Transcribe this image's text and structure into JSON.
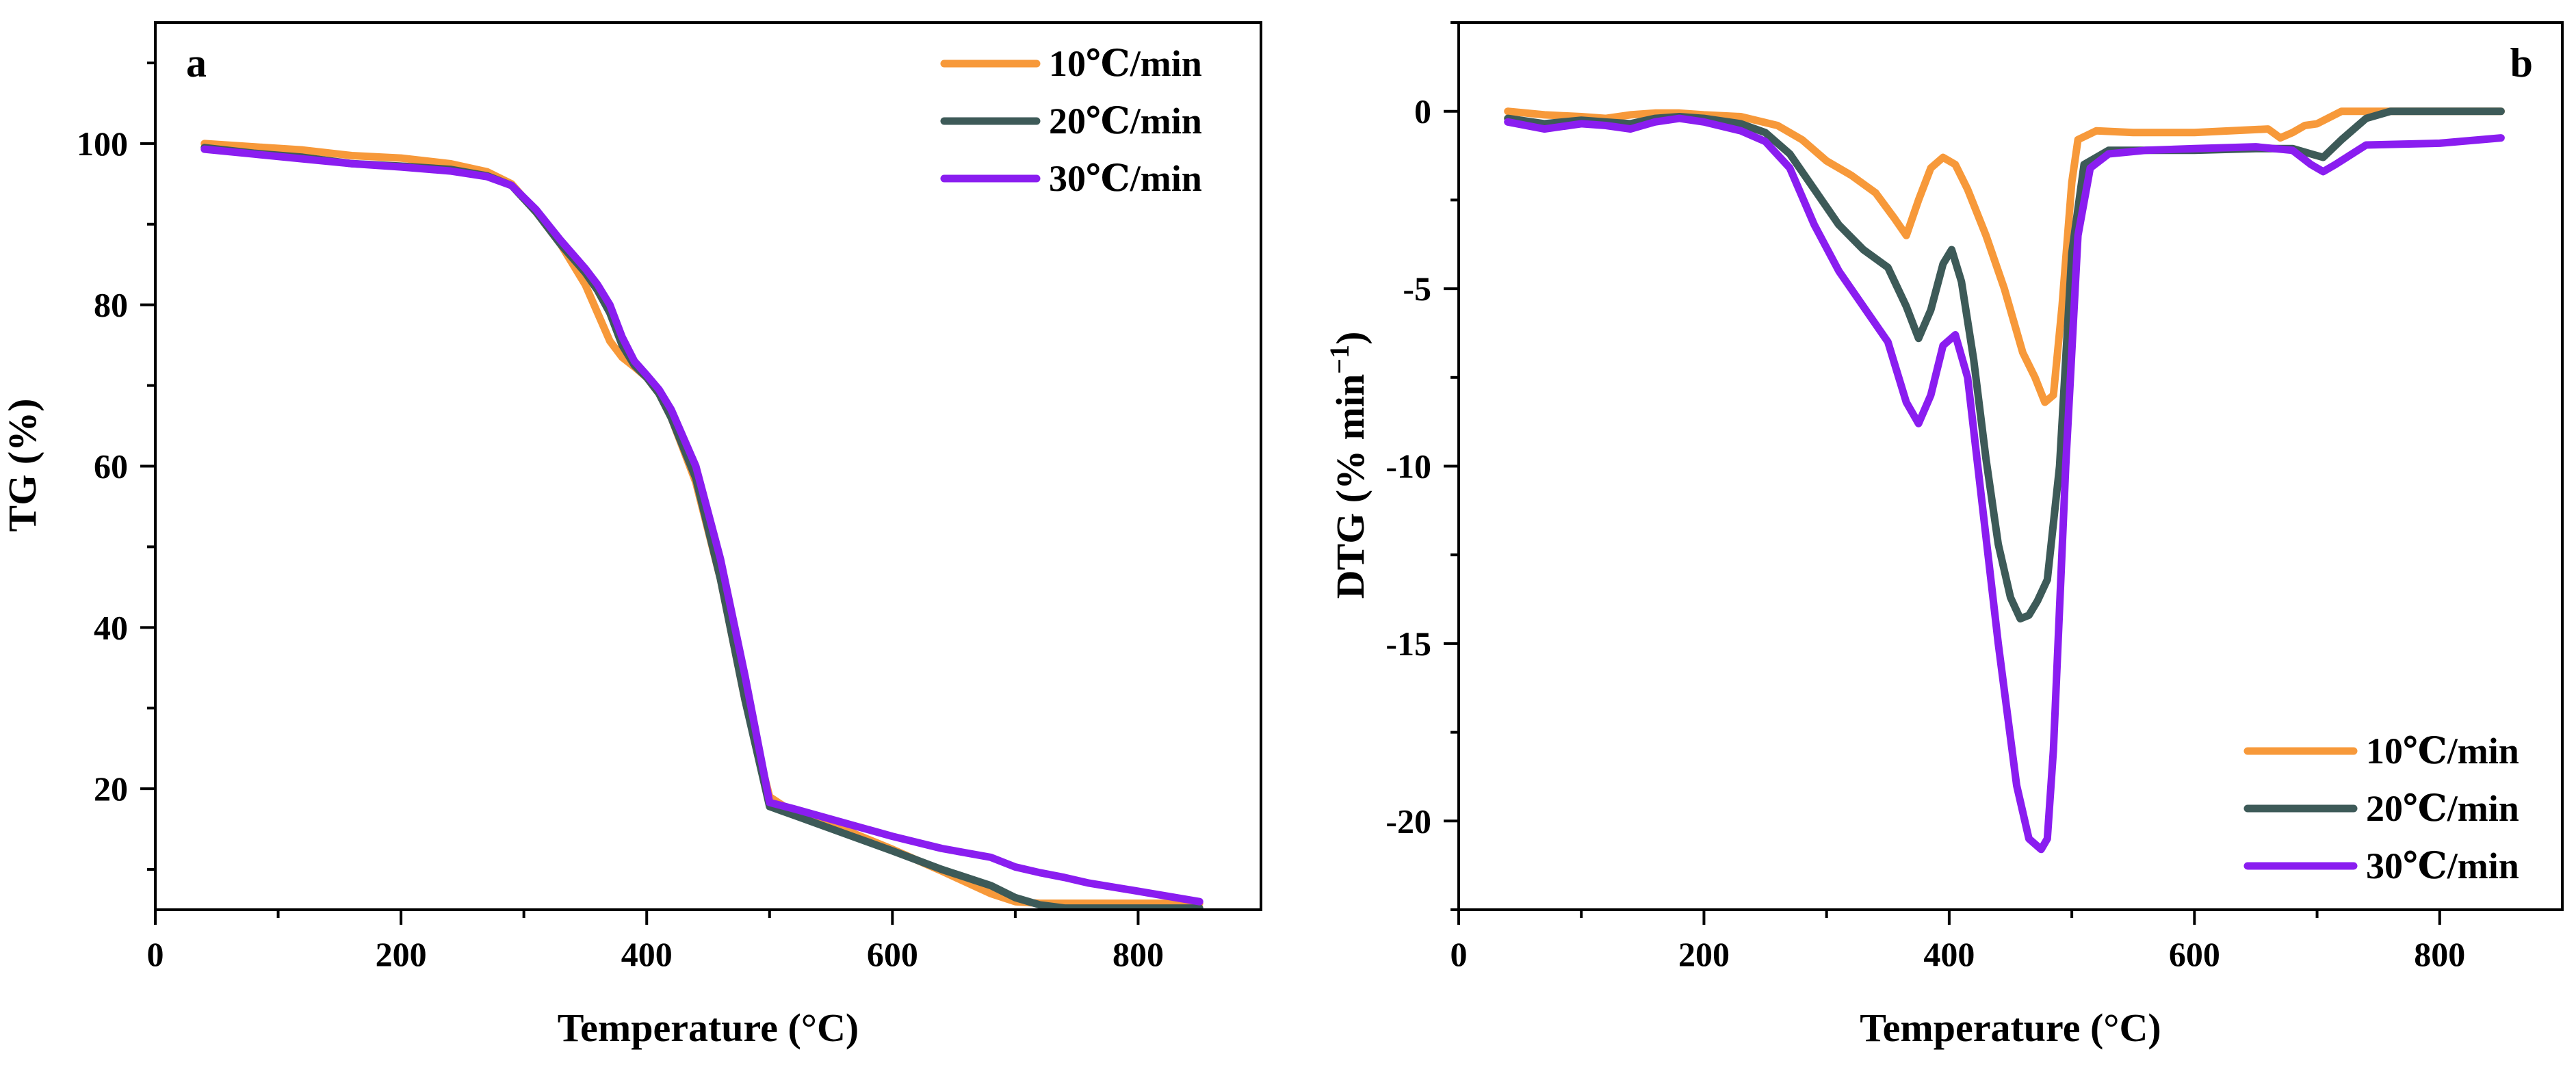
{
  "chart_data": [
    {
      "panel_label": "a",
      "type": "line",
      "xlabel": "Temperature (°C)",
      "ylabel": "TG (%)",
      "xlim": [
        0,
        900
      ],
      "ylim": [
        5,
        115
      ],
      "xticks": [
        0,
        200,
        400,
        600,
        800
      ],
      "xtick_labels": [
        "0",
        "200",
        "400",
        "600",
        "800"
      ],
      "yticks": [
        20,
        40,
        60,
        80,
        100
      ],
      "ytick_labels": [
        "20",
        "40",
        "60",
        "80",
        "100"
      ],
      "legend_position": "top-right",
      "series": [
        {
          "name": "10℃/min",
          "color": "#F7993A",
          "x": [
            40,
            80,
            120,
            160,
            200,
            240,
            270,
            290,
            310,
            330,
            350,
            360,
            370,
            380,
            390,
            400,
            410,
            420,
            440,
            460,
            480,
            500,
            520,
            560,
            600,
            640,
            680,
            700,
            720,
            740,
            760,
            800,
            850
          ],
          "y": [
            100,
            99.6,
            99.2,
            98.5,
            98.2,
            97.5,
            96.5,
            95,
            91.5,
            87.5,
            82.5,
            79,
            75.5,
            73.5,
            72.3,
            71,
            69,
            66,
            58,
            46,
            31,
            19,
            17,
            15,
            12.5,
            9.8,
            7,
            6,
            5.8,
            5.8,
            5.8,
            5.8,
            5.8
          ]
        },
        {
          "name": "20℃/min",
          "color": "#3D5A58",
          "x": [
            40,
            80,
            120,
            160,
            200,
            240,
            270,
            290,
            310,
            330,
            350,
            360,
            370,
            380,
            390,
            400,
            410,
            420,
            440,
            460,
            480,
            500,
            520,
            560,
            600,
            640,
            680,
            700,
            720,
            740,
            760,
            800,
            850
          ],
          "y": [
            99.5,
            98.8,
            98.3,
            97.5,
            97.2,
            96.8,
            96,
            94.8,
            91.5,
            87.5,
            84,
            81.8,
            79,
            75,
            72.5,
            71,
            69,
            66,
            58.5,
            46,
            31,
            17.8,
            16.7,
            14.5,
            12.3,
            10,
            8,
            6.5,
            5.6,
            5.2,
            5.2,
            5.2,
            5.2
          ]
        },
        {
          "name": "30℃/min",
          "color": "#8A1DF0",
          "x": [
            40,
            80,
            120,
            160,
            200,
            240,
            270,
            290,
            310,
            330,
            350,
            360,
            370,
            380,
            390,
            400,
            410,
            420,
            440,
            460,
            480,
            500,
            520,
            560,
            600,
            640,
            680,
            700,
            720,
            740,
            760,
            800,
            850
          ],
          "y": [
            99.3,
            98.7,
            98.1,
            97.5,
            97.1,
            96.6,
            95.9,
            94.8,
            91.8,
            88,
            84.5,
            82.5,
            80,
            76,
            73,
            71.3,
            69.5,
            67,
            60,
            48.5,
            34,
            18.3,
            17.5,
            15.8,
            14.1,
            12.6,
            11.5,
            10.3,
            9.6,
            9,
            8.3,
            7.3,
            6
          ]
        }
      ]
    },
    {
      "panel_label": "b",
      "type": "line",
      "xlabel": "Temperature (°C)",
      "ylabel": "DTG (% min",
      "ylabel_superscript": "−1",
      "ylabel_suffix": ")",
      "xlim": [
        0,
        900
      ],
      "ylim": [
        -22.5,
        2.5
      ],
      "xticks": [
        0,
        200,
        400,
        600,
        800
      ],
      "xtick_labels": [
        "0",
        "200",
        "400",
        "600",
        "800"
      ],
      "yticks": [
        0,
        -5,
        -10,
        -15,
        -20
      ],
      "ytick_labels": [
        "0",
        "-5",
        "-10",
        "-15",
        "-20"
      ],
      "legend_position": "bottom-right",
      "series": [
        {
          "name": "10℃/min",
          "color": "#F7993A",
          "x": [
            40,
            70,
            100,
            120,
            140,
            160,
            180,
            200,
            230,
            260,
            280,
            300,
            320,
            340,
            355,
            365,
            375,
            385,
            395,
            405,
            415,
            430,
            445,
            460,
            470,
            478,
            485,
            492,
            500,
            505,
            520,
            550,
            600,
            660,
            670,
            680,
            690,
            700,
            720,
            760,
            800,
            850
          ],
          "y": [
            0,
            -0.1,
            -0.15,
            -0.2,
            -0.1,
            -0.05,
            -0.05,
            -0.1,
            -0.15,
            -0.4,
            -0.8,
            -1.4,
            -1.8,
            -2.3,
            -3,
            -3.5,
            -2.5,
            -1.6,
            -1.3,
            -1.5,
            -2.2,
            -3.5,
            -5,
            -6.8,
            -7.5,
            -8.2,
            -8,
            -5.5,
            -2,
            -0.8,
            -0.55,
            -0.6,
            -0.6,
            -0.5,
            -0.75,
            -0.6,
            -0.4,
            -0.35,
            0,
            0,
            0,
            0
          ]
        },
        {
          "name": "20℃/min",
          "color": "#3D5A58",
          "x": [
            40,
            70,
            100,
            120,
            140,
            160,
            180,
            200,
            230,
            250,
            270,
            290,
            310,
            330,
            350,
            365,
            375,
            385,
            395,
            402,
            410,
            420,
            430,
            440,
            450,
            458,
            465,
            472,
            480,
            490,
            500,
            510,
            530,
            560,
            600,
            650,
            680,
            695,
            705,
            720,
            740,
            760,
            800,
            850
          ],
          "y": [
            -0.2,
            -0.35,
            -0.25,
            -0.3,
            -0.35,
            -0.2,
            -0.15,
            -0.2,
            -0.35,
            -0.6,
            -1.2,
            -2.2,
            -3.2,
            -3.9,
            -4.4,
            -5.5,
            -6.4,
            -5.6,
            -4.3,
            -3.9,
            -4.8,
            -7,
            -9.8,
            -12.2,
            -13.7,
            -14.3,
            -14.2,
            -13.8,
            -13.2,
            -10,
            -4,
            -1.5,
            -1.1,
            -1.1,
            -1.1,
            -1.05,
            -1.05,
            -1.2,
            -1.3,
            -0.8,
            -0.2,
            0,
            0,
            0
          ]
        },
        {
          "name": "30℃/min",
          "color": "#8A1DF0",
          "x": [
            40,
            70,
            100,
            120,
            140,
            160,
            180,
            200,
            230,
            250,
            270,
            290,
            310,
            330,
            350,
            365,
            375,
            385,
            395,
            405,
            415,
            425,
            440,
            455,
            465,
            475,
            480,
            485,
            495,
            505,
            515,
            530,
            560,
            600,
            650,
            680,
            695,
            705,
            715,
            740,
            800,
            850
          ],
          "y": [
            -0.3,
            -0.5,
            -0.35,
            -0.4,
            -0.5,
            -0.3,
            -0.2,
            -0.3,
            -0.55,
            -0.85,
            -1.6,
            -3.2,
            -4.5,
            -5.5,
            -6.5,
            -8.2,
            -8.8,
            -8,
            -6.6,
            -6.3,
            -7.5,
            -10.5,
            -15,
            -19,
            -20.5,
            -20.8,
            -20.5,
            -18,
            -10,
            -3.5,
            -1.6,
            -1.2,
            -1.1,
            -1.05,
            -1.0,
            -1.1,
            -1.5,
            -1.7,
            -1.5,
            -0.95,
            -0.9,
            -0.75
          ]
        }
      ]
    }
  ]
}
